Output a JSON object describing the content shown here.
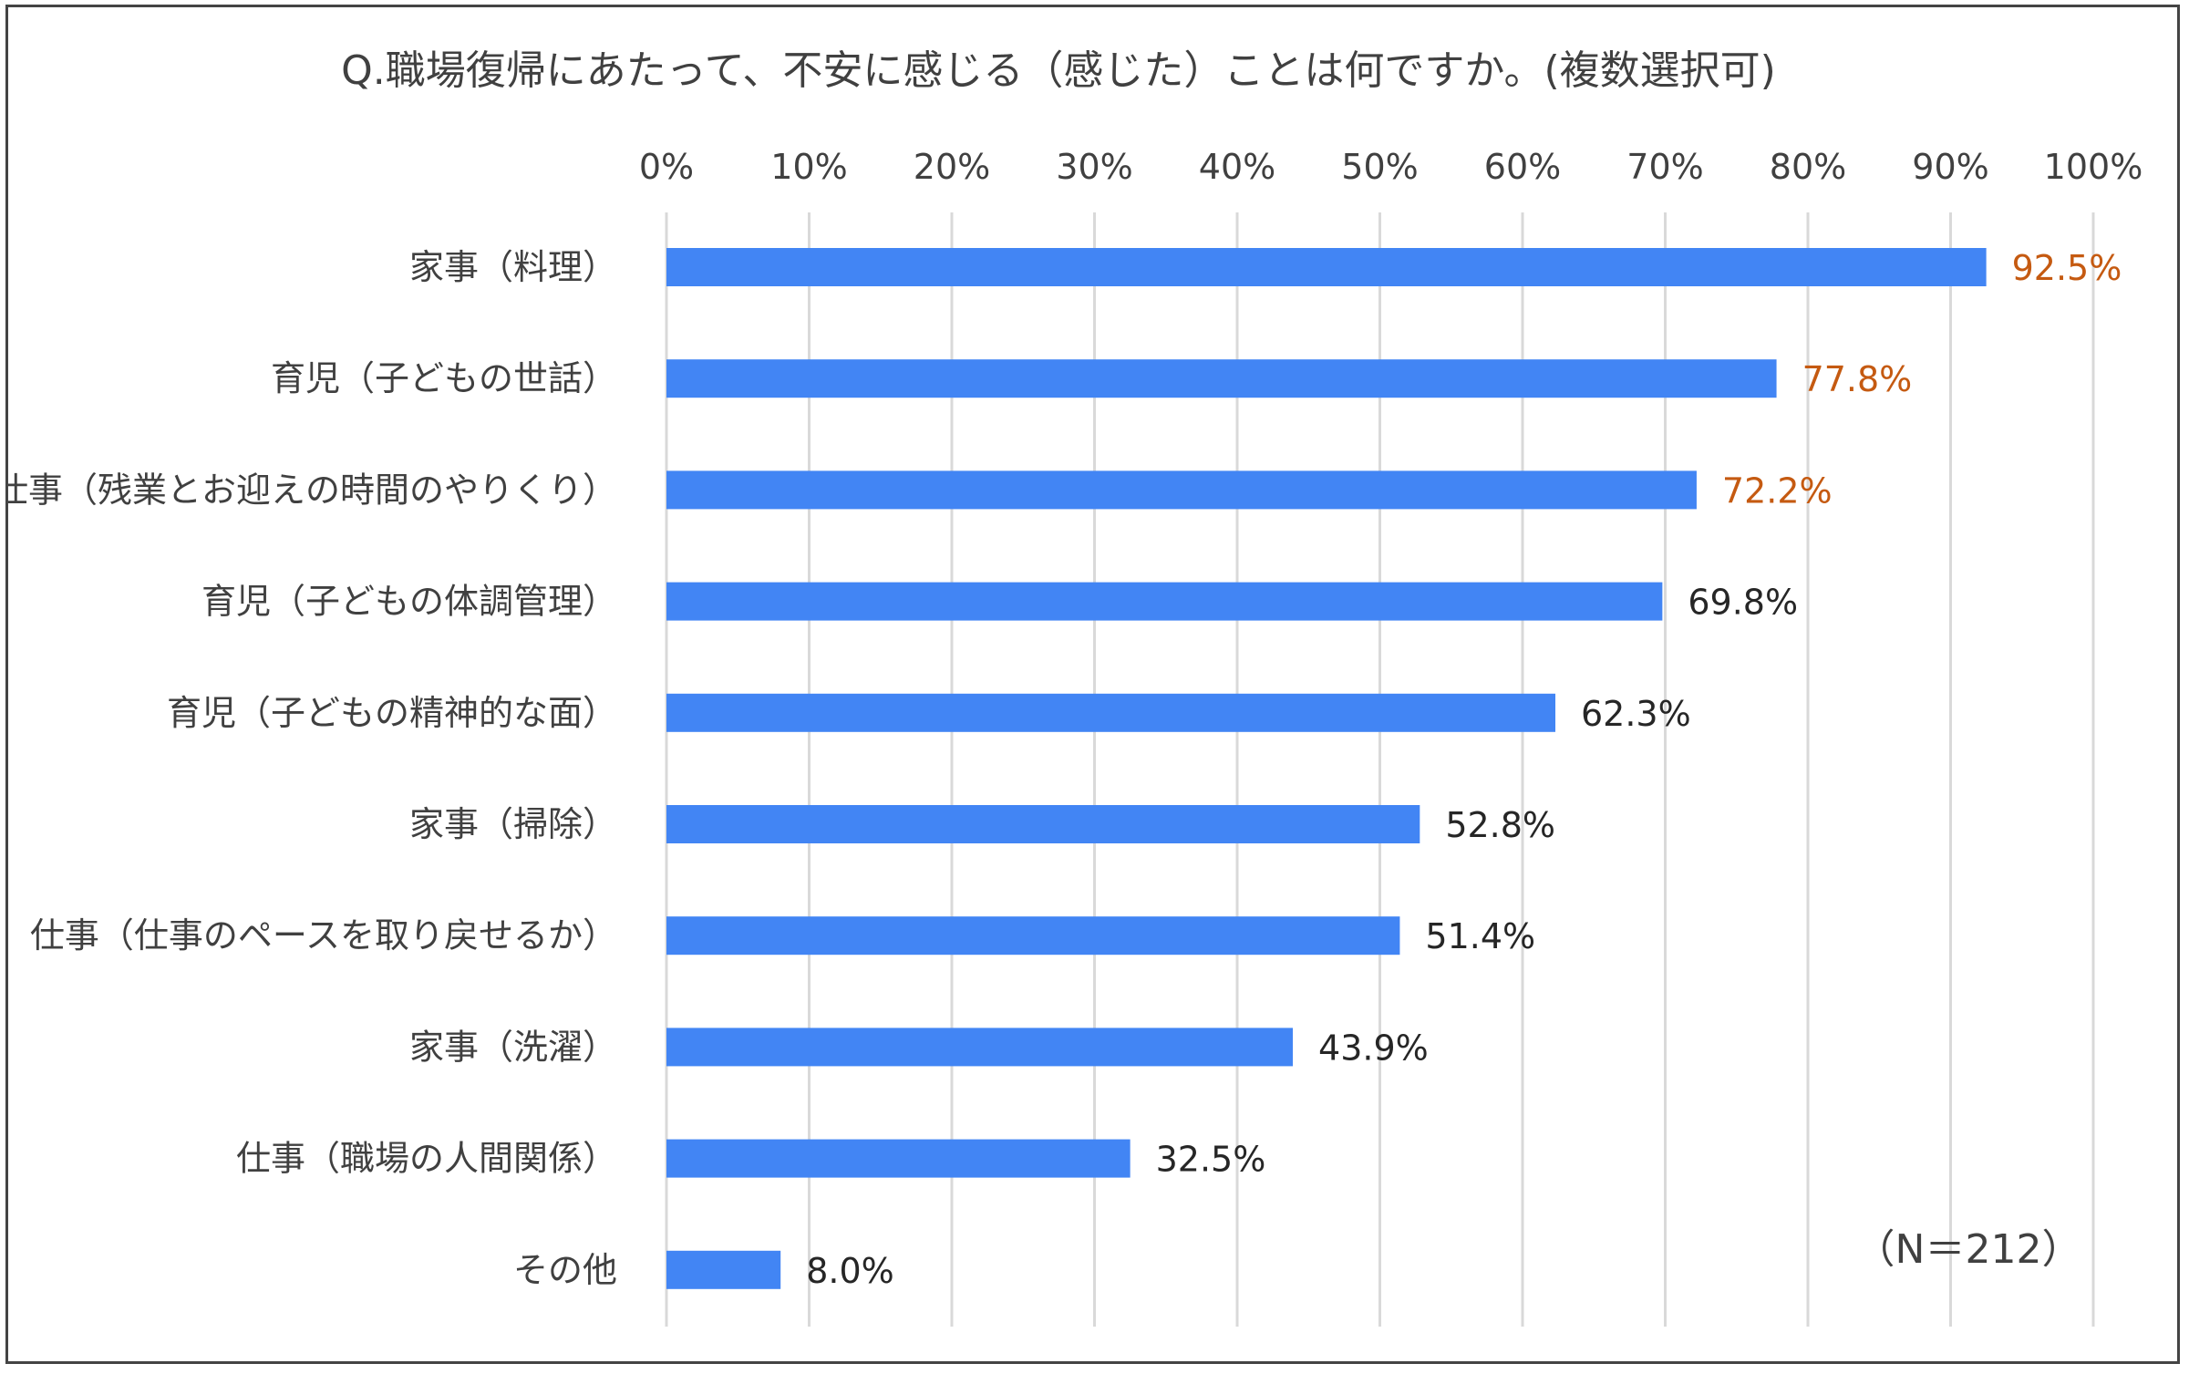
{
  "chart_data": {
    "type": "bar",
    "orientation": "horizontal",
    "title": "Q.職場復帰にあたって、不安に感じる（感じた）ことは何ですか。(複数選択可)",
    "categories": [
      "家事（料理）",
      "育児（子どもの世話）",
      "仕事（残業とお迎えの時間のやりくり）",
      "育児（子どもの体調管理）",
      "育児（子どもの精神的な面）",
      "家事（掃除）",
      "仕事（仕事のペースを取り戻せるか）",
      "家事（洗濯）",
      "仕事（職場の人間関係）",
      "その他"
    ],
    "values": [
      92.5,
      77.8,
      72.2,
      69.8,
      62.3,
      52.8,
      51.4,
      43.9,
      32.5,
      8.0
    ],
    "value_labels": [
      "92.5%",
      "77.8%",
      "72.2%",
      "69.8%",
      "62.3%",
      "52.8%",
      "51.4%",
      "43.9%",
      "32.5%",
      "8.0%"
    ],
    "highlighted": [
      true,
      true,
      true,
      false,
      false,
      false,
      false,
      false,
      false,
      false
    ],
    "x_ticks": [
      "0%",
      "10%",
      "20%",
      "30%",
      "40%",
      "50%",
      "60%",
      "70%",
      "80%",
      "90%",
      "100%"
    ],
    "xlim": [
      0,
      100
    ],
    "xlabel": "",
    "ylabel": "",
    "grid": true,
    "axis_position": "top",
    "note": "（N＝212）",
    "colors": {
      "bar": "#4285F4",
      "highlight_label": "#C55A11",
      "normal_label": "#262626",
      "grid": "#D9D9D9",
      "text": "#404040",
      "frame": "#444444"
    }
  }
}
